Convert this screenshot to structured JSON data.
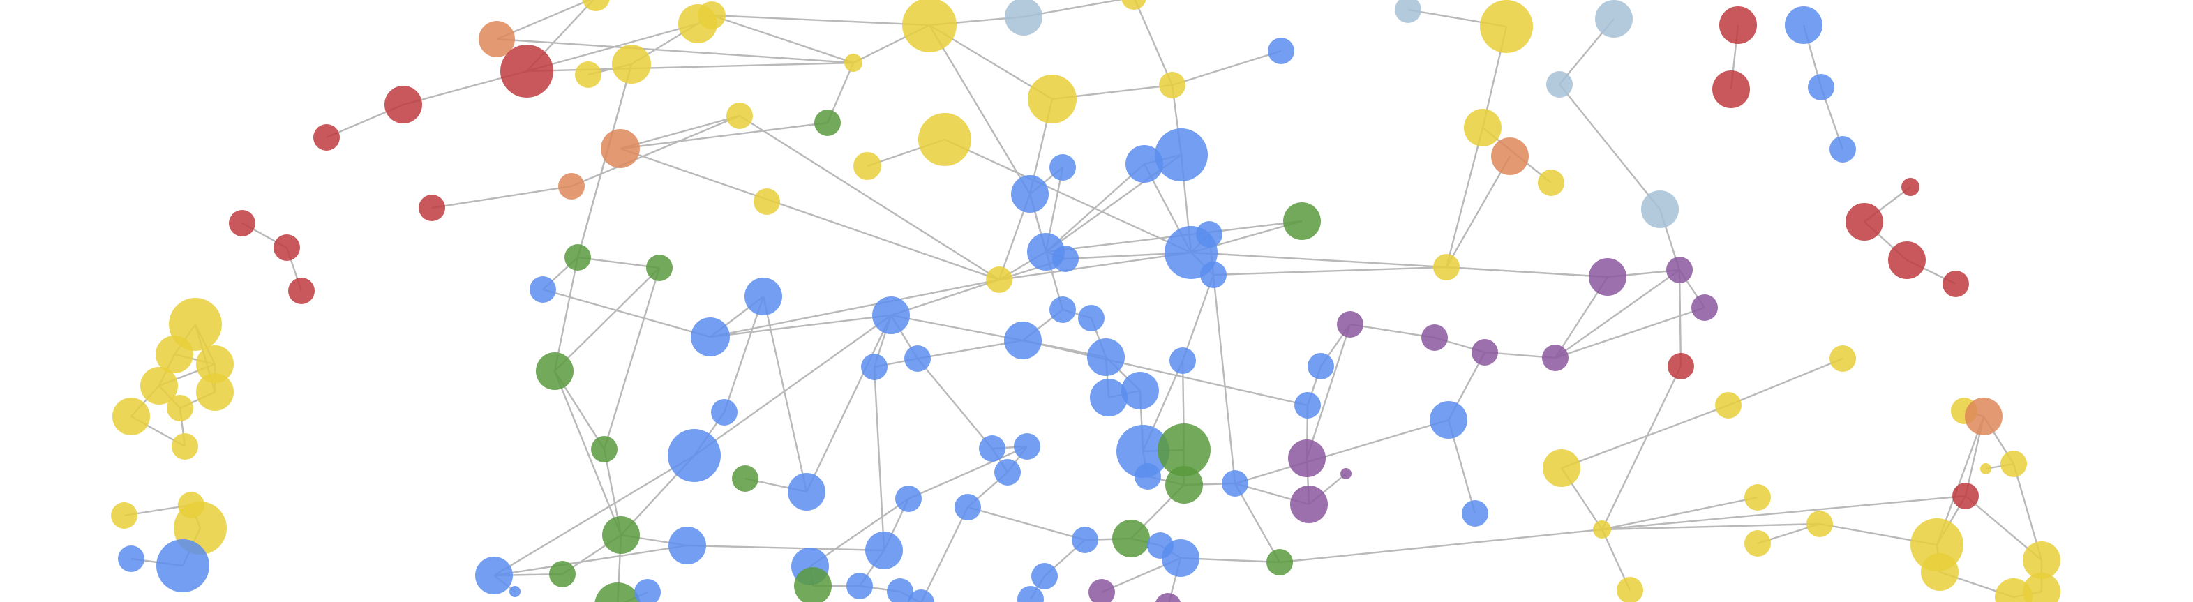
{
  "graph": {
    "palette": {
      "blue": "#5B8DEF",
      "yellow": "#E9CF3A",
      "green": "#5A9A3E",
      "red": "#BE3B3E",
      "orange": "#DE8859",
      "purple": "#8A579E",
      "gray_blue": "#A6BFD6"
    },
    "edge_color": "#b9b9b9",
    "background": "#ffffff"
  }
}
